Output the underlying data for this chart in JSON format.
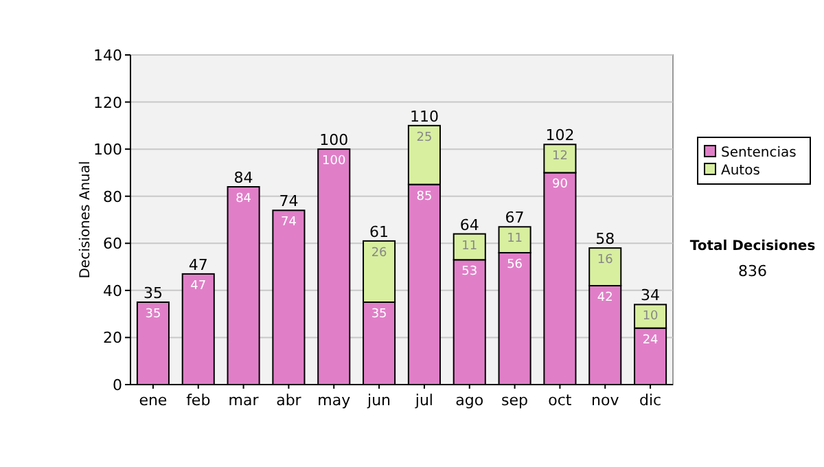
{
  "chart_data": {
    "type": "bar",
    "stacked": true,
    "ylabel": "Decisiones Anual",
    "categories": [
      "ene",
      "feb",
      "mar",
      "abr",
      "may",
      "jun",
      "jul",
      "ago",
      "sep",
      "oct",
      "nov",
      "dic"
    ],
    "series": [
      {
        "name": "Sentencias",
        "color": "#e07fc8",
        "values": [
          35,
          47,
          84,
          74,
          100,
          35,
          85,
          53,
          56,
          90,
          42,
          24
        ]
      },
      {
        "name": "Autos",
        "color": "#d8efa0",
        "values": [
          null,
          null,
          null,
          null,
          null,
          26,
          25,
          11,
          11,
          12,
          16,
          10
        ]
      }
    ],
    "data_labels": true,
    "totals": [
      "35",
      "47",
      "84",
      "74",
      "100",
      "61",
      "110",
      "64",
      "67",
      "102",
      "58",
      "34"
    ],
    "ylim": [
      0,
      140
    ],
    "yticks": [
      0,
      20,
      40,
      60,
      80,
      100,
      120,
      140
    ],
    "grid": "y",
    "legend": "right",
    "annotations": [
      "Total Decisiones",
      "836"
    ]
  }
}
